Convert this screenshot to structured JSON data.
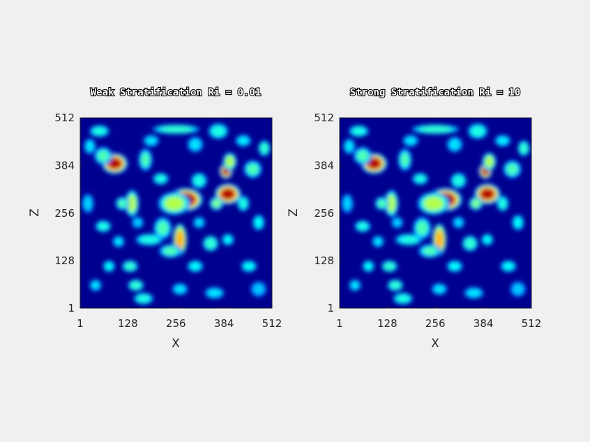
{
  "colormap": "jet",
  "colors": {
    "background": "#f0f0f0",
    "field_low": "#00008f",
    "field_high": "#800000"
  },
  "chart_data": [
    {
      "type": "heatmap",
      "title": "Weak Stratification Ri = 0.01",
      "xlabel": "X",
      "ylabel": "Z",
      "xlim": [
        1,
        512
      ],
      "ylim": [
        1,
        512
      ],
      "xticks": [
        "1",
        "128",
        "256",
        "384",
        "512"
      ],
      "yticks": [
        "1",
        "128",
        "256",
        "384",
        "512"
      ]
    },
    {
      "type": "heatmap",
      "title": "Strong Stratification Ri = 10",
      "xlabel": "X",
      "ylabel": "Z",
      "xlim": [
        1,
        512
      ],
      "ylim": [
        1,
        512
      ],
      "xticks": [
        "1",
        "128",
        "256",
        "384",
        "512"
      ],
      "yticks": [
        "1",
        "128",
        "256",
        "384",
        "512"
      ]
    }
  ]
}
